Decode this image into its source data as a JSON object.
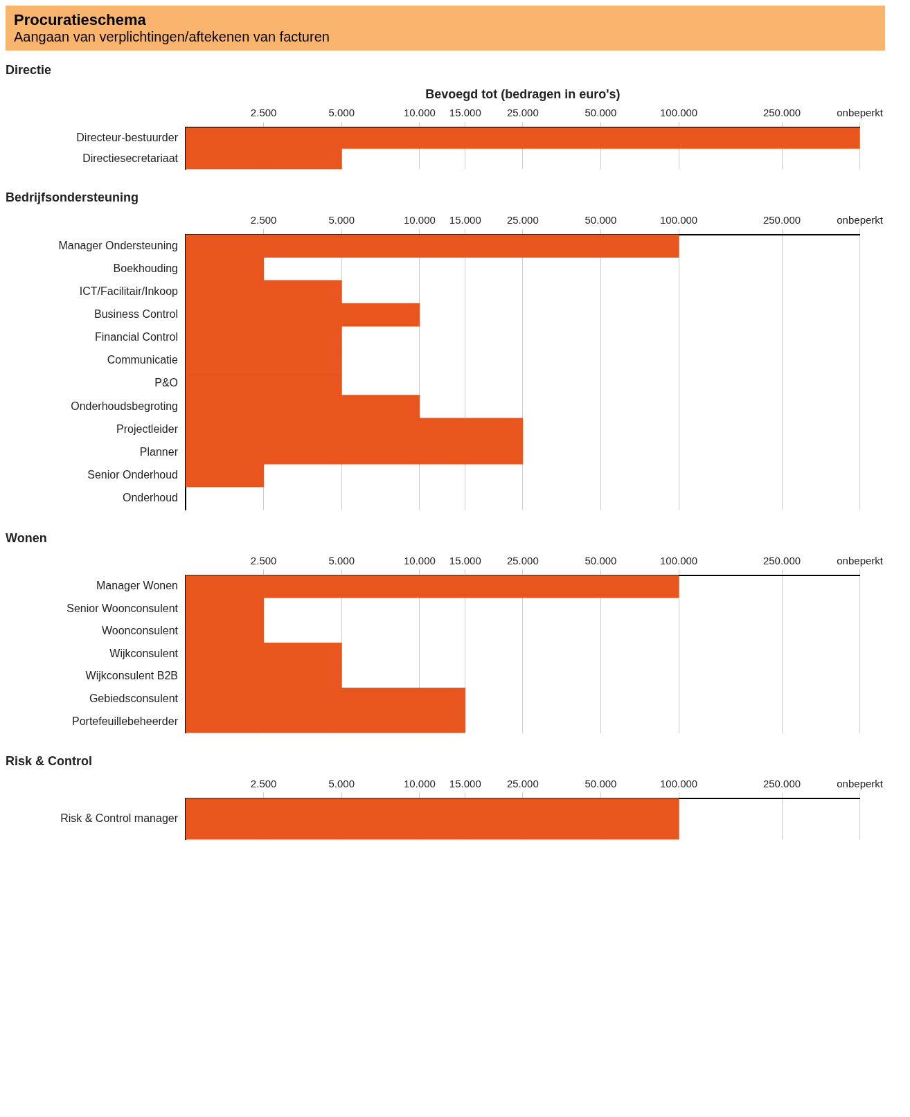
{
  "chart_data": [
    {
      "type": "other",
      "title": "Procuratieschema",
      "subtitle": "Aangaan van verplichtingen/aftekenen van facturen"
    },
    {
      "type": "bar",
      "orientation": "horizontal",
      "title": "Directie",
      "xlabel": "Bevoegd tot (bedragen in euro's)",
      "categories": [
        "Directeur-bestuurder",
        "Directiesecretariaat"
      ],
      "values": [
        500000,
        5000
      ],
      "color": "#e8561e",
      "log": "x",
      "xlim": [
        1250,
        500000
      ],
      "xticks": [
        {
          "value": 2500,
          "label": "2.500"
        },
        {
          "value": 5000,
          "label": "5.000"
        },
        {
          "value": 10000,
          "label": "10.000"
        },
        {
          "value": 15000,
          "label": "15.000"
        },
        {
          "value": 25000,
          "label": "25.000"
        },
        {
          "value": 50000,
          "label": "50.000"
        },
        {
          "value": 100000,
          "label": "100.000"
        },
        {
          "value": 250000,
          "label": "250.000"
        },
        {
          "value": 500000,
          "label": "onbeperkt"
        }
      ],
      "grid": "x"
    },
    {
      "type": "bar",
      "orientation": "horizontal",
      "title": "Bedrijfsondersteuning",
      "categories": [
        "Manager Ondersteuning",
        "Boekhouding",
        "ICT/Facilitair/Inkoop",
        "Business Control",
        "Financial Control",
        "Communicatie",
        "P&O",
        "Onderhoudsbegroting",
        "Projectleider",
        "Planner",
        "Senior Onderhoud",
        "Onderhoud"
      ],
      "values": [
        100000,
        2500,
        5000,
        10000,
        5000,
        5000,
        5000,
        10000,
        25000,
        25000,
        2500,
        null
      ],
      "color": "#e8561e",
      "log": "x",
      "xlim": [
        1250,
        500000
      ],
      "xticks": [
        {
          "value": 2500,
          "label": "2.500"
        },
        {
          "value": 5000,
          "label": "5.000"
        },
        {
          "value": 10000,
          "label": "10.000"
        },
        {
          "value": 15000,
          "label": "15.000"
        },
        {
          "value": 25000,
          "label": "25.000"
        },
        {
          "value": 50000,
          "label": "50.000"
        },
        {
          "value": 100000,
          "label": "100.000"
        },
        {
          "value": 250000,
          "label": "250.000"
        },
        {
          "value": 500000,
          "label": "onbeperkt"
        }
      ],
      "grid": "x"
    },
    {
      "type": "bar",
      "orientation": "horizontal",
      "title": "Wonen",
      "categories": [
        "Manager Wonen",
        "Senior Woonconsulent",
        "Woonconsulent",
        "Wijkconsulent",
        "Wijkconsulent B2B",
        "Gebiedsconsulent",
        "Portefeuillebeheerder"
      ],
      "values": [
        100000,
        2500,
        2500,
        5000,
        5000,
        15000,
        15000
      ],
      "color": "#e8561e",
      "log": "x",
      "xlim": [
        1250,
        500000
      ],
      "xticks": [
        {
          "value": 2500,
          "label": "2.500"
        },
        {
          "value": 5000,
          "label": "5.000"
        },
        {
          "value": 10000,
          "label": "10.000"
        },
        {
          "value": 15000,
          "label": "15.000"
        },
        {
          "value": 25000,
          "label": "25.000"
        },
        {
          "value": 50000,
          "label": "50.000"
        },
        {
          "value": 100000,
          "label": "100.000"
        },
        {
          "value": 250000,
          "label": "250.000"
        },
        {
          "value": 500000,
          "label": "onbeperkt"
        }
      ],
      "grid": "x"
    },
    {
      "type": "bar",
      "orientation": "horizontal",
      "title": "Risk & Control",
      "categories": [
        "Risk & Control manager"
      ],
      "values": [
        100000
      ],
      "color": "#e8561e",
      "log": "x",
      "xlim": [
        1250,
        500000
      ],
      "xticks": [
        {
          "value": 2500,
          "label": "2.500"
        },
        {
          "value": 5000,
          "label": "5.000"
        },
        {
          "value": 10000,
          "label": "10.000"
        },
        {
          "value": 15000,
          "label": "15.000"
        },
        {
          "value": 25000,
          "label": "25.000"
        },
        {
          "value": 50000,
          "label": "50.000"
        },
        {
          "value": 100000,
          "label": "100.000"
        },
        {
          "value": 250000,
          "label": "250.000"
        },
        {
          "value": 500000,
          "label": "onbeperkt"
        }
      ],
      "grid": "x"
    }
  ]
}
